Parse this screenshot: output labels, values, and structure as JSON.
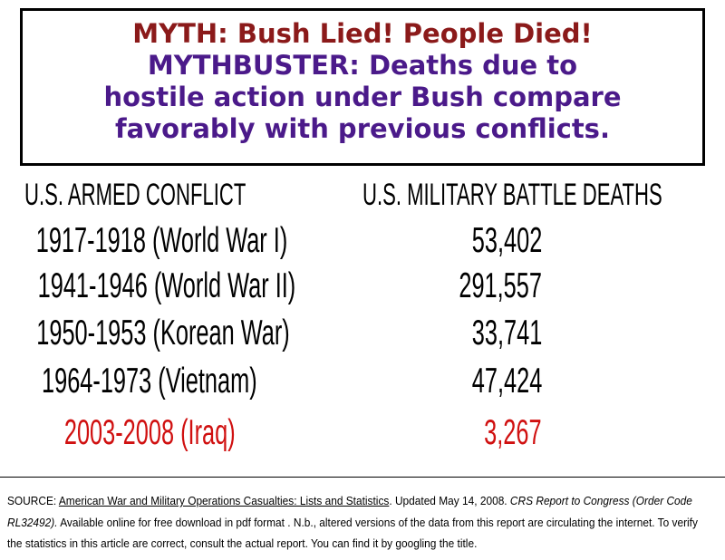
{
  "header": {
    "myth": "MYTH: Bush Lied! People Died!",
    "mythbuster": [
      "MYTHBUSTER: Deaths due to",
      "hostile action under Bush compare",
      "favorably with previous conflicts."
    ]
  },
  "table": {
    "columns": [
      "U.S. ARMED CONFLICT",
      "U.S. MILITARY BATTLE DEATHS"
    ],
    "rows": [
      [
        "1917-1918 (World War I)",
        "53,402"
      ],
      [
        "1941-1946 (World War II)",
        "291,557"
      ],
      [
        "1950-1953 (Korean War)",
        "33,741"
      ],
      [
        "1964-1973 (Vietnam)",
        "47,424"
      ],
      [
        "2003-2008 (Iraq)",
        "3,267"
      ]
    ]
  },
  "source": {
    "label": "SOURCE:",
    "link": "American War and Military Operations Casualties: Lists and Statistics",
    "updated": ". Updated May 14, 2008.",
    "report": "CRS Report to Congress (Order Code RL32492).",
    "rest": "Available online for free download in pdf format . N.b., altered versions of the data from this report are circulating the internet. To verify the statistics in this article are correct, consult the actual report. You can find it by googling the title."
  }
}
